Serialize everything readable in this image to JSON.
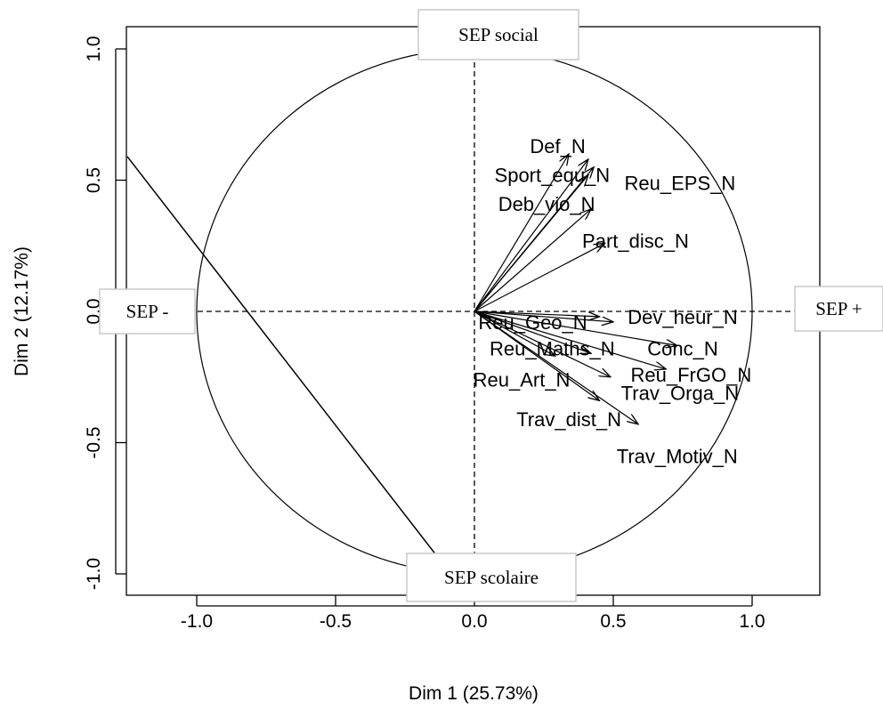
{
  "chart_data": {
    "type": "scatter",
    "subtype": "pca-variable-correlation-circle",
    "title": "",
    "xlabel": "Dim 1 (25.73%)",
    "ylabel": "Dim 2 (12.17%)",
    "xlim": [
      -1.25,
      1.25
    ],
    "ylim": [
      -1.1,
      1.1
    ],
    "xticks": [
      "-1.0",
      "-0.5",
      "0.0",
      "0.5",
      "1.0"
    ],
    "yticks": [
      "-1.0",
      "-0.5",
      "0.0",
      "0.5",
      "1.0"
    ],
    "grid": false,
    "unit_circle": true,
    "variables": [
      {
        "name": "Def_N",
        "x": 0.34,
        "y": 0.6
      },
      {
        "name": "Sport_equ_N",
        "x": 0.41,
        "y": 0.58
      },
      {
        "name": "Reu_EPS_N",
        "x": 0.43,
        "y": 0.55
      },
      {
        "name": "Deb_vio_N",
        "x": 0.41,
        "y": 0.52
      },
      {
        "name": "Part_disc_N",
        "x": 0.42,
        "y": 0.39
      },
      {
        "name": "Part_disc_N_2",
        "x": 0.47,
        "y": 0.26
      },
      {
        "name": "Dev_heur_N",
        "x": 0.5,
        "y": -0.04
      },
      {
        "name": "Reu_Geo_N",
        "x": 0.45,
        "y": -0.02
      },
      {
        "name": "Conc_N",
        "x": 0.73,
        "y": -0.13
      },
      {
        "name": "Reu_FrGO_N",
        "x": 0.69,
        "y": -0.22
      },
      {
        "name": "Reu_Maths_N",
        "x": 0.42,
        "y": -0.16
      },
      {
        "name": "Reu_Art_N",
        "x": 0.29,
        "y": -0.17
      },
      {
        "name": "Trav_Orga_N",
        "x": 0.49,
        "y": -0.25
      },
      {
        "name": "Trav_dist_N",
        "x": 0.45,
        "y": -0.34
      },
      {
        "name": "Trav_Motiv_N",
        "x": 0.59,
        "y": -0.43
      }
    ],
    "point_labels": [
      {
        "text": "Def_N"
      },
      {
        "text": "Sport_equ_N"
      },
      {
        "text": "Reu_EPS_N"
      },
      {
        "text": "Deb_vio_N"
      },
      {
        "text": "Part_disc_N"
      },
      {
        "text": "Reu_Geo_N"
      },
      {
        "text": "Dev_heur_N"
      },
      {
        "text": "Conc_N"
      },
      {
        "text": "Reu_Maths_N"
      },
      {
        "text": "Reu_FrGO_N"
      },
      {
        "text": "Reu_Art_N"
      },
      {
        "text": "Trav_Orga_N"
      },
      {
        "text": "Trav_dist_N"
      },
      {
        "text": "Trav_Motiv_N"
      }
    ],
    "annotations": [
      {
        "text": "SEP social",
        "position": "top"
      },
      {
        "text": "SEP scolaire",
        "position": "bottom"
      },
      {
        "text": "SEP -",
        "position": "left"
      },
      {
        "text": "SEP +",
        "position": "right"
      }
    ],
    "reference_line": {
      "from": [
        -1.25,
        0.59
      ],
      "to": [
        -0.1,
        -0.98
      ]
    }
  }
}
